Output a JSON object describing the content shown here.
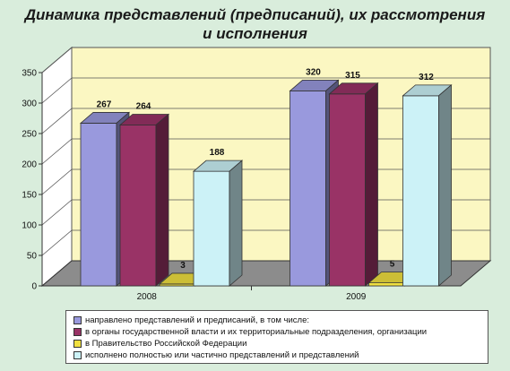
{
  "title_lines": [
    "Динамика представлений (предписаний), их рассмотрения",
    "и исполнения"
  ],
  "chart_data": {
    "type": "bar",
    "title": "Динамика представлений (предписаний), их рассмотрения и исполнения",
    "categories": [
      "2008",
      "2009"
    ],
    "ylim": [
      0,
      350
    ],
    "yticks": [
      0,
      50,
      100,
      150,
      200,
      250,
      300,
      350
    ],
    "grid": true,
    "legend_position": "bottom",
    "series": [
      {
        "name": "направлено представлений и предписаний, в том числе:",
        "values": [
          267,
          320
        ],
        "color": "#9999dd"
      },
      {
        "name": "в органы государственной власти и их территориальные подразделения, организации",
        "values": [
          264,
          315
        ],
        "color": "#993366"
      },
      {
        "name": "в Правительство Российской Федерации",
        "values": [
          3,
          5
        ],
        "color": "#f0e040"
      },
      {
        "name": "исполнено полностью или частично представлений и представлений",
        "values": [
          188,
          312
        ],
        "color": "#ccf2f7"
      }
    ],
    "data_labels": [
      [
        "267",
        "264",
        "3",
        "188"
      ],
      [
        "320",
        "315",
        "5",
        "312"
      ]
    ]
  }
}
